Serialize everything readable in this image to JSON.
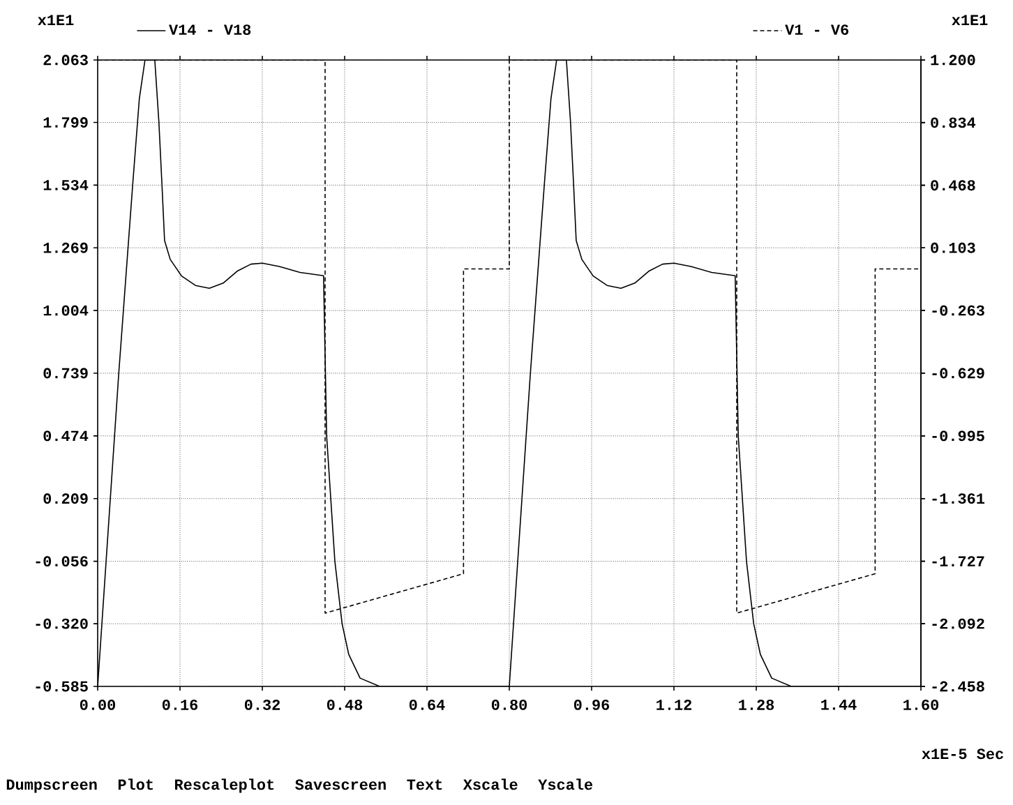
{
  "chart_data": {
    "type": "line",
    "xlabel": "x1E-5 Sec",
    "ylabel": "x1E1",
    "y2label": "x1E1",
    "xlim": [
      0,
      1.6
    ],
    "xticks": [
      {
        "value": 0,
        "label": "0.00"
      },
      0.16,
      0.32,
      0.48,
      0.64,
      {
        "value": 0.8,
        "label": "0.80"
      },
      0.96,
      1.12,
      1.28,
      1.44,
      {
        "value": 1.6,
        "label": "1.60"
      }
    ],
    "ylim": [
      -0.585,
      2.063
    ],
    "yticks": [
      -0.585,
      {
        "value": -0.32,
        "label": "-0.320"
      },
      -0.056,
      0.209,
      0.474,
      0.739,
      1.004,
      1.269,
      1.534,
      1.799,
      2.063
    ],
    "y2lim": [
      -2.458,
      1.2
    ],
    "y2ticks": [
      -2.458,
      -2.092,
      -1.727,
      -1.361,
      -0.995,
      -0.629,
      -0.263,
      0.103,
      0.468,
      0.834,
      {
        "value": 1.2,
        "label": "1.200"
      }
    ],
    "grid": true,
    "legend": "top",
    "marker": "none",
    "series": [
      {
        "name": "V14 - V18",
        "color": "#000000",
        "line_style": "solid",
        "x": [
          0.0,
          0.041,
          0.068,
          0.081,
          0.092,
          0.111,
          0.119,
          0.125,
          0.13,
          0.141,
          0.163,
          0.19,
          0.217,
          0.244,
          0.271,
          0.298,
          0.32,
          0.353,
          0.393,
          0.439,
          0.445,
          0.453,
          0.461,
          0.475,
          0.488,
          0.51,
          0.548,
          0.8,
          0.841,
          0.868,
          0.881,
          0.892,
          0.911,
          0.919,
          0.925,
          0.93,
          0.941,
          0.963,
          0.99,
          1.017,
          1.044,
          1.071,
          1.098,
          1.12,
          1.153,
          1.193,
          1.239,
          1.245,
          1.253,
          1.261,
          1.275,
          1.288,
          1.31,
          1.348,
          1.6
        ],
        "values": [
          -0.585,
          0.739,
          1.534,
          1.9,
          2.063,
          2.063,
          1.8,
          1.534,
          1.3,
          1.22,
          1.15,
          1.11,
          1.098,
          1.12,
          1.17,
          1.2,
          1.204,
          1.19,
          1.165,
          1.151,
          0.474,
          0.209,
          -0.056,
          -0.32,
          -0.45,
          -0.55,
          -0.585,
          -0.585,
          0.739,
          1.534,
          1.9,
          2.063,
          2.063,
          1.8,
          1.534,
          1.3,
          1.22,
          1.15,
          1.11,
          1.098,
          1.12,
          1.17,
          1.2,
          1.204,
          1.19,
          1.165,
          1.151,
          0.474,
          0.209,
          -0.056,
          -0.32,
          -0.45,
          -0.55,
          -0.585,
          -0.585
        ]
      },
      {
        "name": "V1 - V6",
        "color": "#000000",
        "line_style": "dashed",
        "axis": "y2",
        "x": [
          0.0,
          0.442,
          0.442,
          0.711,
          0.711,
          0.8,
          0.8,
          1.242,
          1.242,
          1.511,
          1.511,
          1.6
        ],
        "values": [
          1.2,
          1.2,
          -2.03,
          -1.8,
          -0.02,
          -0.02,
          1.2,
          1.2,
          -2.03,
          -1.8,
          -0.02,
          -0.02
        ]
      }
    ],
    "annotations": [
      "Dumpscreen",
      "Plot",
      "Rescaleplot",
      "Savescreen",
      "Text",
      "Xscale",
      "Yscale"
    ]
  }
}
